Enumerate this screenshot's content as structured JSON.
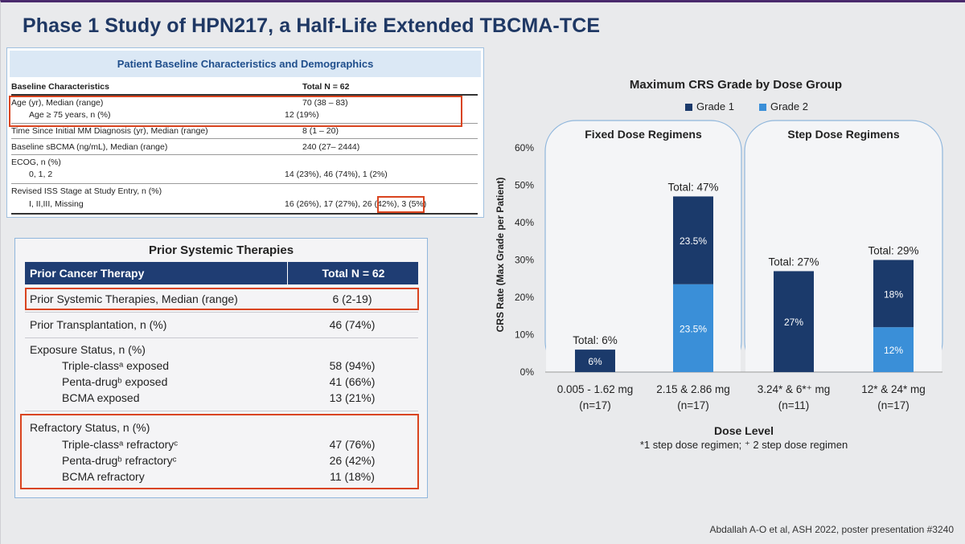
{
  "title": "Phase 1 Study of HPN217, a Half-Life Extended TBCMA-TCE",
  "baseline": {
    "header": "Patient Baseline Characteristics and Demographics",
    "col1": "Baseline Characteristics",
    "col2": "Total N = 62",
    "rows": [
      {
        "label": "Age (yr), Median (range)",
        "value": "70 (38 – 83)"
      },
      {
        "label": "Age ≥ 75 years, n (%)",
        "value": "12 (19%)"
      },
      {
        "label": "Time Since Initial MM Diagnosis (yr), Median (range)",
        "value": "8 (1 – 20)"
      },
      {
        "label": "Baseline sBCMA (ng/mL), Median (range)",
        "value": "240 (27– 2444)"
      },
      {
        "label": "ECOG, n (%)",
        "value": ""
      },
      {
        "label": "0, 1, 2",
        "value": "14 (23%), 46 (74%), 1 (2%)"
      },
      {
        "label": "Revised ISS Stage at Study Entry, n (%)",
        "value": ""
      },
      {
        "label": "I, II,III, Missing",
        "value": "16 (26%), 17 (27%), 26 (42%), 3 (5%)"
      }
    ]
  },
  "prior": {
    "title": "Prior Systemic Therapies",
    "col1": "Prior Cancer Therapy",
    "col2": "Total N = 62",
    "rows": [
      {
        "label": "Prior Systemic Therapies, Median (range)",
        "value": "6 (2-19)"
      },
      {
        "label": "Prior Transplantation, n (%)",
        "value": "46 (74%)"
      },
      {
        "label": "Exposure Status, n (%)",
        "value": ""
      },
      {
        "label": "Triple-classᵃ exposed",
        "value": "58 (94%)"
      },
      {
        "label": "Penta-drugᵇ exposed",
        "value": "41 (66%)"
      },
      {
        "label": "BCMA exposed",
        "value": "13 (21%)"
      },
      {
        "label": "Refractory Status, n (%)",
        "value": ""
      },
      {
        "label": "Triple-classᵃ refractoryᶜ",
        "value": "47 (76%)"
      },
      {
        "label": "Penta-drugᵇ refractoryᶜ",
        "value": "26 (42%)"
      },
      {
        "label": "BCMA refractory",
        "value": "11 (18%)"
      }
    ]
  },
  "chart_data": {
    "type": "bar",
    "title": "Maximum CRS Grade by Dose Group",
    "ylabel": "CRS Rate (Max Grade per Patient)",
    "xlabel": "Dose Level",
    "ylim": [
      0,
      60
    ],
    "yticks": [
      "0%",
      "10%",
      "20%",
      "30%",
      "40%",
      "50%",
      "60%"
    ],
    "legend_position": "top",
    "groups": [
      "Fixed Dose Regimens",
      "Step Dose Regimens"
    ],
    "categories": [
      "0.005 - 1.62 mg",
      "2.15 & 2.86 mg",
      "3.24* & 6*⁺ mg",
      "12* & 24* mg"
    ],
    "category_n": [
      "(n=17)",
      "(n=17)",
      "(n=11)",
      "(n=17)"
    ],
    "series": [
      {
        "name": "Grade 1",
        "color": "#1b3a6b",
        "values": [
          6,
          23.5,
          27,
          18
        ],
        "labels": [
          "6%",
          "23.5%",
          "27%",
          "18%"
        ]
      },
      {
        "name": "Grade 2",
        "color": "#3a8fd8",
        "values": [
          0,
          23.5,
          0,
          12
        ],
        "labels": [
          "",
          "23.5%",
          "",
          "12%"
        ]
      }
    ],
    "totals": [
      "Total: 6%",
      "Total: 47%",
      "Total: 27%",
      "Total: 29%"
    ],
    "footnote": "*1 step dose regimen; ⁺ 2 step dose regimen"
  },
  "citation": "Abdallah A-O et al, ASH 2022, poster presentation #3240"
}
